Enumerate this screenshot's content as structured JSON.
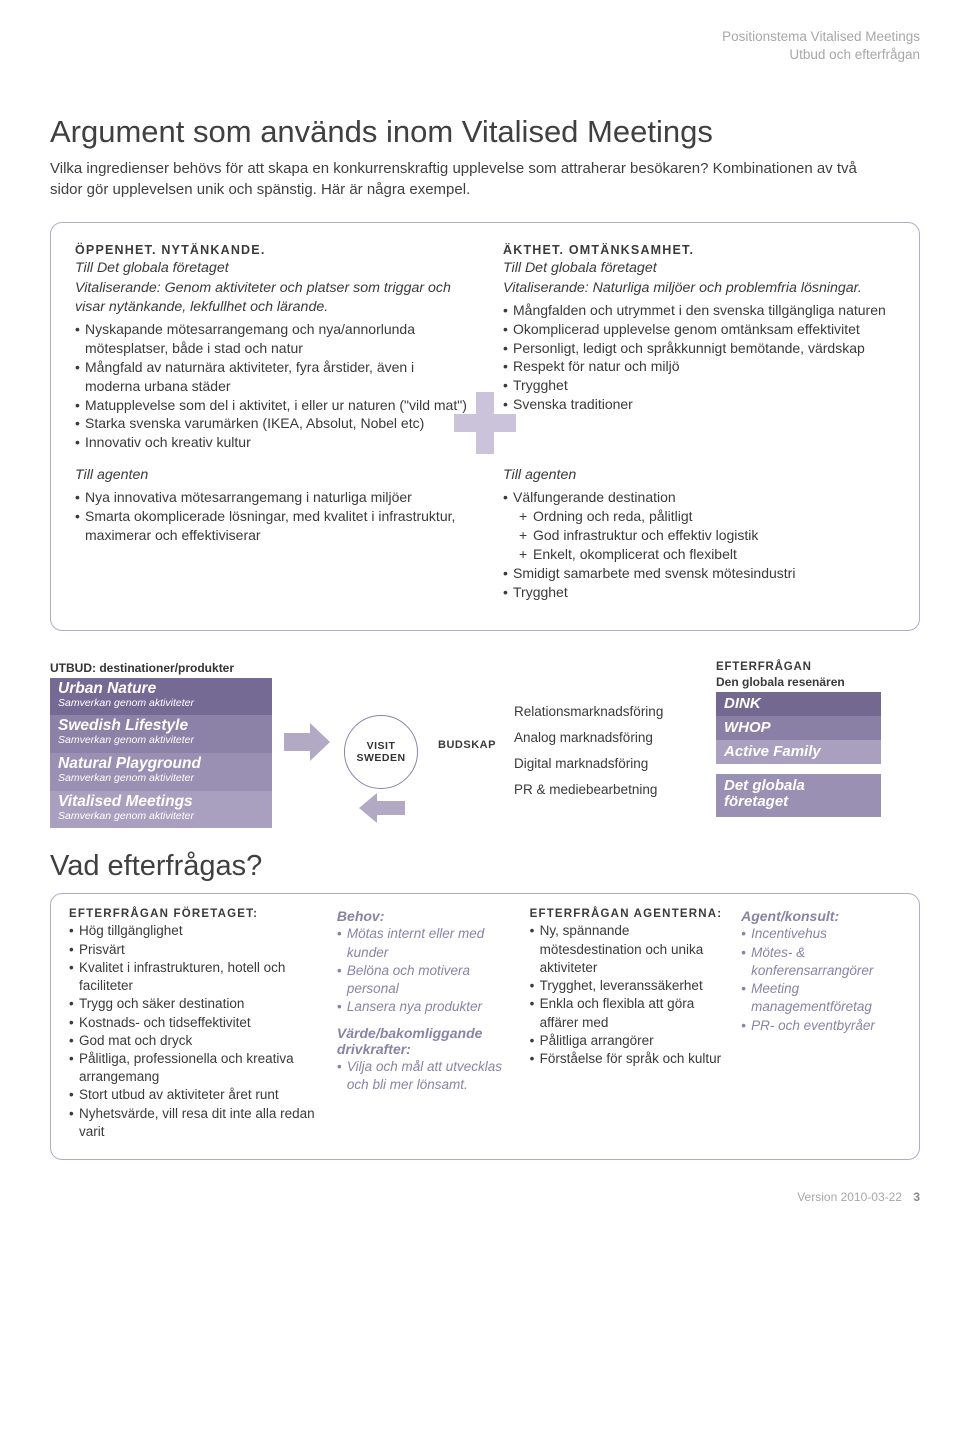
{
  "colors": {
    "border": "#b3aac7",
    "bar1": "#756a93",
    "bar2": "#8c82a8",
    "bar3": "#9a90b3",
    "bar4": "#a9a0bf",
    "chip1": "#736990",
    "chip2": "#8a80a5",
    "chip3": "#a9a0bf",
    "chip4": "#9a90b3",
    "arrow": "#b2a9c5",
    "plus": "#cbc3d9"
  },
  "header": {
    "l1": "Positionstema Vitalised Meetings",
    "l2": "Utbud och efterfrågan"
  },
  "title": "Argument som används inom Vitalised Meetings",
  "intro": "Vilka ingredienser behövs för att skapa en konkurrenskraftig upplevelse som attraherar besökaren? Kombinationen av två sidor gör upplevelsen unik och spänstig. Här är några exempel.",
  "quad": {
    "tl": {
      "title": "ÖPPENHET. NYTÄNKANDE.",
      "sub_em": "Till Det globala företaget",
      "sub": "Vitaliserande: Genom aktiviteter och platser som triggar och visar nytänkande, lekfullhet och lärande.",
      "items": [
        "Nyskapande mötesarrangemang och nya/annorlunda mötesplatser, både i stad och natur",
        "Mångfald av naturnära aktiviteter, fyra årstider, även i moderna urbana städer",
        "Matupplevelse som del i aktivitet, i eller ur naturen (\"vild mat\")",
        "Starka svenska varumärken (IKEA, Absolut, Nobel etc)",
        "Innovativ och kreativ kultur"
      ]
    },
    "tr": {
      "title": "ÄKTHET. OMTÄNKSAMHET.",
      "sub_em": "Till Det globala företaget",
      "sub": "Vitaliserande: Naturliga miljöer och problemfria lösningar.",
      "items": [
        "Mångfalden och utrymmet i den svenska tillgängliga naturen",
        "Okomplicerad upplevelse genom omtänksam effektivitet",
        "Personligt, ledigt och språkkunnigt bemötande, värdskap",
        "Respekt för natur och miljö",
        "Trygghet",
        "Svenska traditioner"
      ]
    },
    "bl": {
      "sub_em": "Till agenten",
      "items": [
        "Nya innovativa mötesarrangemang i naturliga miljöer",
        "Smarta okomplicerade lösningar, med kvalitet i infrastruktur, maximerar och effektiviserar"
      ]
    },
    "br": {
      "sub_em": "Till agenten",
      "items": [
        "Välfungerande destination"
      ],
      "plus": [
        "Ordning och reda, pålitligt",
        "God infrastruktur och effektiv logistik",
        "Enkelt, okomplicerat och flexibelt"
      ],
      "items2": [
        "Smidigt samarbete med svensk mötesindustri",
        "Trygghet"
      ]
    }
  },
  "mid": {
    "utbud_label": "UTBUD: destinationer/produkter",
    "bars": [
      {
        "big": "Urban Nature",
        "sm": "Samverkan genom aktiviteter"
      },
      {
        "big": "Swedish Lifestyle",
        "sm": "Samverkan genom aktiviteter"
      },
      {
        "big": "Natural Playground",
        "sm": "Samverkan genom aktiviteter"
      },
      {
        "big": "Vitalised Meetings",
        "sm": "Samverkan genom aktiviteter"
      }
    ],
    "center": "VISIT SWEDEN",
    "budskap": "BUDSKAP",
    "rel": [
      "Relationsmarknadsföring",
      "Analog marknadsföring",
      "Digital marknadsföring",
      "PR & mediebearbetning"
    ],
    "eft_label": "EFTERFRÅGAN",
    "eft_sub": "Den globala resenären",
    "chips": [
      "DINK",
      "WHOP",
      "Active Family"
    ],
    "chip_big": "Det globala företaget"
  },
  "h2": "Vad efterfrågas?",
  "bottom": {
    "c1": {
      "head": "EFTERFRÅGAN FÖRETAGET:",
      "items": [
        "Hög tillgänglighet",
        "Prisvärt",
        "Kvalitet i infrastrukturen, hotell och faciliteter",
        "Trygg och säker destination",
        "Kostnads- och tidseffektivitet",
        "God mat och dryck",
        "Pålitliga, professionella och kreativa arrangemang",
        "Stort utbud av aktiviteter året runt",
        "Nyhetsvärde, vill resa dit inte alla redan varit"
      ]
    },
    "c2": {
      "b1_head": "Behov:",
      "b1": [
        "Mötas internt eller med kunder",
        "Belöna och motivera personal",
        "Lansera nya produkter"
      ],
      "b2_head": "Värde/bakomliggande drivkrafter:",
      "b2": [
        "Vilja och mål att utvecklas och bli mer lönsamt."
      ]
    },
    "c3": {
      "head": "EFTERFRÅGAN AGENTERNA:",
      "items": [
        "Ny, spännande mötesdestination och unika aktiviteter",
        "Trygghet, leveranssäkerhet",
        "Enkla och flexibla att göra affärer med",
        "Pålitliga arrangörer",
        "Förståelse för språk och kultur"
      ]
    },
    "c4": {
      "head": "Agent/konsult:",
      "items": [
        "Incentivehus",
        "Mötes- & konferensarrangörer",
        "Meeting managementföretag",
        "PR- och eventbyråer"
      ]
    }
  },
  "footer": {
    "ver": "Version 2010-03-22",
    "page": "3"
  }
}
